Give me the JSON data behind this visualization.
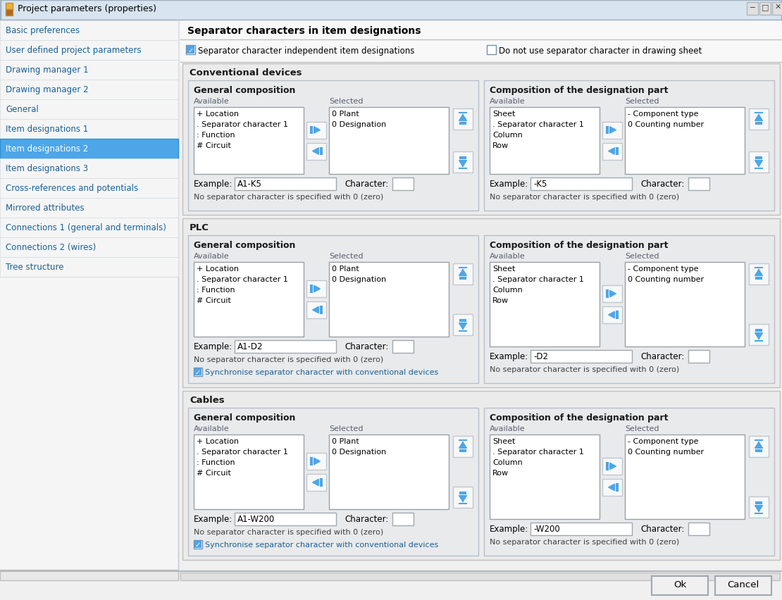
{
  "title": "Project parameters (properties)",
  "window_bg": "#f0f0f0",
  "titlebar_bg": "#dce6f0",
  "left_panel_bg": "#f5f5f5",
  "selected_item_bg": "#4da6e8",
  "nav_items": [
    "Basic preferences",
    "User defined project parameters",
    "Drawing manager 1",
    "Drawing manager 2",
    "General",
    "Item designations 1",
    "Item designations 2",
    "Item designations 3",
    "Cross-references and potentials",
    "Mirrored attributes",
    "Connections 1 (general and terminals)",
    "Connections 2 (wires)",
    "Tree structure"
  ],
  "selected_nav_index": 6,
  "arrow_color": "#4da6e8",
  "checkbox_checked_color": "#4da6e8",
  "main_header": "Separator characters in item designations",
  "checkbox1_text": "Separator character independent item designations",
  "checkbox1_checked": true,
  "checkbox2_text": "Do not use separator character in drawing sheet",
  "checkbox2_checked": false,
  "sections": [
    {
      "name": "Conventional devices",
      "left_panel": {
        "title": "General composition",
        "available_items": [
          "+ Location",
          ". Separator character 1",
          ": Function",
          "# Circuit"
        ],
        "selected_items": [
          "0 Plant",
          "0 Designation"
        ],
        "example": "A1-K5",
        "note": "No separator character is specified with 0 (zero)",
        "sync_checkbox": false,
        "sync_text": ""
      },
      "right_panel": {
        "title": "Composition of the designation part",
        "available_items": [
          "Sheet",
          ". Separator character 1",
          "Column",
          "Row"
        ],
        "selected_items": [
          "- Component type",
          "0 Counting number"
        ],
        "example": "-K5",
        "note": "No separator character is specified with 0 (zero)",
        "sync_checkbox": false,
        "sync_text": ""
      }
    },
    {
      "name": "PLC",
      "left_panel": {
        "title": "General composition",
        "available_items": [
          "+ Location",
          ". Separator character 1",
          ": Function",
          "# Circuit"
        ],
        "selected_items": [
          "0 Plant",
          "0 Designation"
        ],
        "example": "A1-D2",
        "note": "No separator character is specified with 0 (zero)",
        "sync_checkbox": true,
        "sync_text": "Synchronise separator character with conventional devices"
      },
      "right_panel": {
        "title": "Composition of the designation part",
        "available_items": [
          "Sheet",
          ". Separator character 1",
          "Column",
          "Row"
        ],
        "selected_items": [
          "- Component type",
          "0 Counting number"
        ],
        "example": "-D2",
        "note": "No separator character is specified with 0 (zero)",
        "sync_checkbox": false,
        "sync_text": ""
      }
    },
    {
      "name": "Cables",
      "left_panel": {
        "title": "General composition",
        "available_items": [
          "+ Location",
          ". Separator character 1",
          ": Function",
          "# Circuit"
        ],
        "selected_items": [
          "0 Plant",
          "0 Designation"
        ],
        "example": "A1-W200",
        "note": "No separator character is specified with 0 (zero)",
        "sync_checkbox": true,
        "sync_text": "Synchronise separator character with conventional devices"
      },
      "right_panel": {
        "title": "Composition of the designation part",
        "available_items": [
          "Sheet",
          ". Separator character 1",
          "Column",
          "Row"
        ],
        "selected_items": [
          "- Component type",
          "0 Counting number"
        ],
        "example": "-W200",
        "note": "No separator character is specified with 0 (zero)",
        "sync_checkbox": false,
        "sync_text": ""
      }
    }
  ]
}
